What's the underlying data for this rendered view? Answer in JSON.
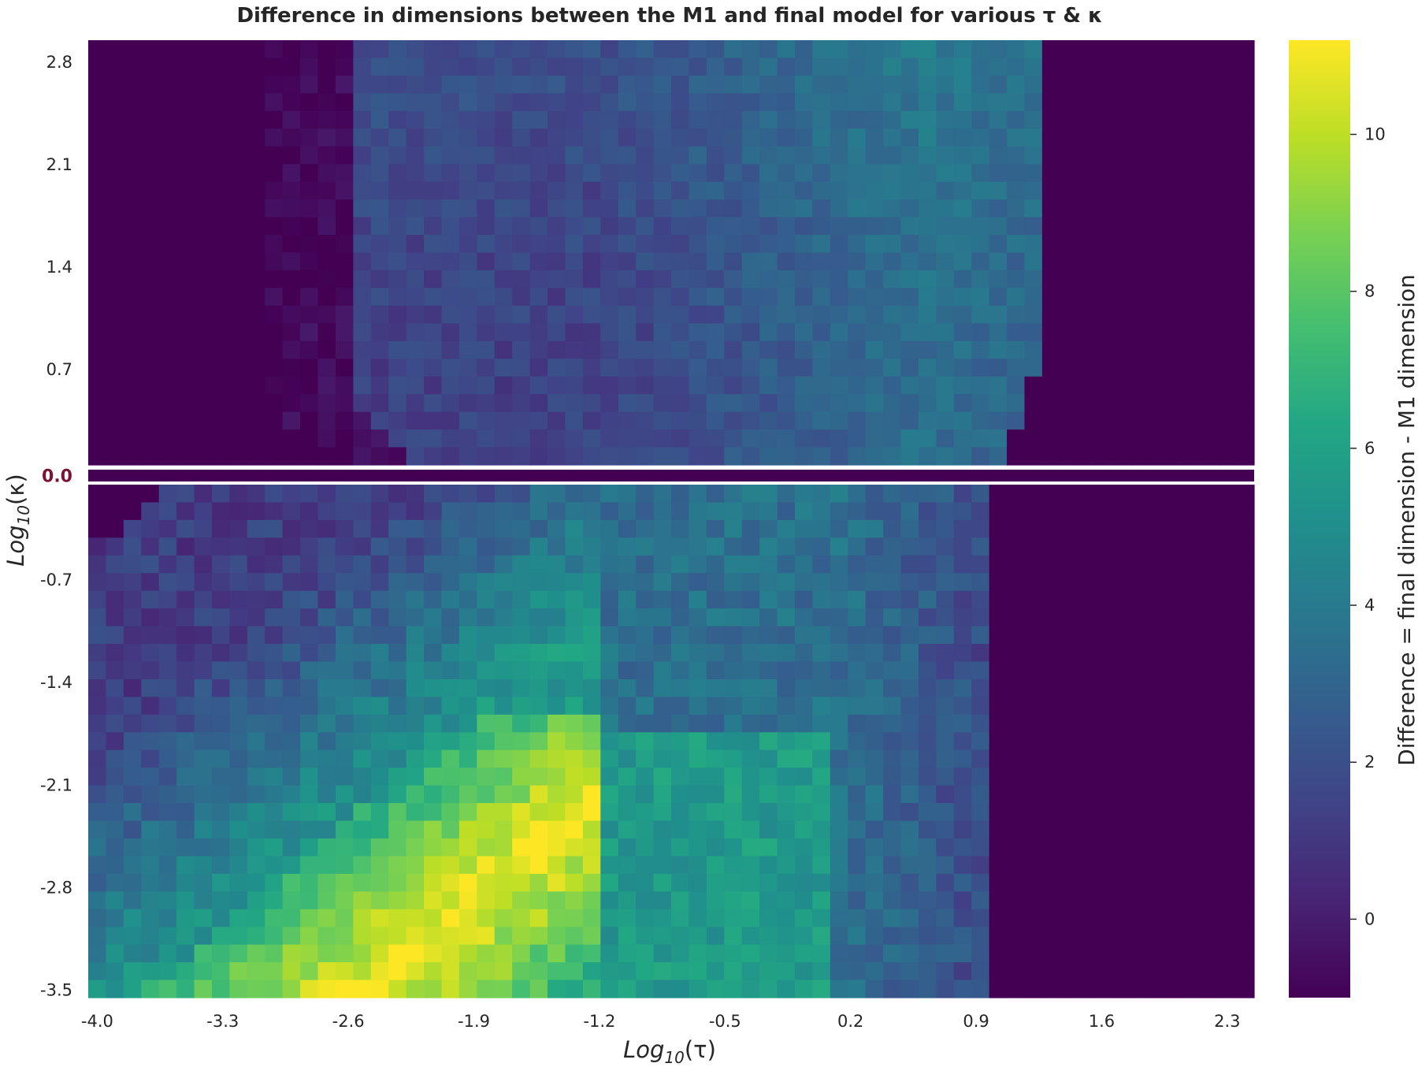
{
  "chart_data": {
    "type": "heatmap",
    "title": "Difference in dimensions between the M1 and final model for various τ & κ",
    "xlabel": {
      "base": "Log",
      "sub": "10",
      "arg": "(τ)"
    },
    "ylabel": {
      "base": "Log",
      "sub": "10",
      "arg": "(κ)"
    },
    "colorbar_label": "Difference = final dimension - M1 dimension",
    "colormap": "viridis",
    "color_range": [
      -1,
      11.2
    ],
    "colorbar_ticks": [
      "10",
      "8",
      "6",
      "4",
      "2",
      "0"
    ],
    "colorbar_tick_values": [
      10,
      8,
      6,
      4,
      2,
      0
    ],
    "x_tick_labels": [
      "-4.0",
      "-3.3",
      "-2.6",
      "-1.9",
      "-1.2",
      "-0.5",
      "0.2",
      "0.9",
      "1.6",
      "2.3"
    ],
    "x_tick_values": [
      -4.0,
      -3.3,
      -2.6,
      -1.9,
      -1.2,
      -0.5,
      0.2,
      0.9,
      1.6,
      2.3
    ],
    "x_range": [
      -4.05,
      2.45
    ],
    "y_tick_labels_upper": [
      "2.8",
      "2.1",
      "1.4",
      "0.7"
    ],
    "y_tick_values_upper": [
      2.8,
      2.1,
      1.4,
      0.7
    ],
    "y_range_upper": [
      0.05,
      2.95
    ],
    "y_tick_labels_lower": [
      "-0.7",
      "-1.4",
      "-2.1",
      "-2.8",
      "-3.5"
    ],
    "y_tick_values_lower": [
      -0.7,
      -1.4,
      -2.1,
      -2.8,
      -3.5
    ],
    "y_range_lower": [
      -3.55,
      -0.05
    ],
    "zero_row_label": "0.0",
    "zero_row_value": 0.0,
    "zero_label_color": "#7a1436",
    "separator_color": "#ffffff",
    "grid": false,
    "approx_regions": [
      {
        "name": "upper band (κ > 0)",
        "x_range": [
          -2.6,
          1.3
        ],
        "approx_value": 2.5
      },
      {
        "name": "upper band outer region",
        "x_range_outside": [
          -2.6,
          1.3
        ],
        "approx_value": -1
      },
      {
        "name": "lower band peak region",
        "x_range": [
          -3.8,
          -1.2
        ],
        "y_range": [
          -3.5,
          -1.6
        ],
        "approx_value": 9.5
      },
      {
        "name": "lower band mid plateau",
        "x_range": [
          -1.2,
          0.1
        ],
        "y_range": [
          -3.5,
          -1.6
        ],
        "approx_value": 5.5
      },
      {
        "name": "lower band right fade",
        "x_range": [
          0.1,
          0.9
        ],
        "approx_value": 3
      },
      {
        "name": "lower band outer region",
        "x_range_outside": [
          -4.0,
          0.9
        ],
        "approx_value": -1
      }
    ]
  }
}
